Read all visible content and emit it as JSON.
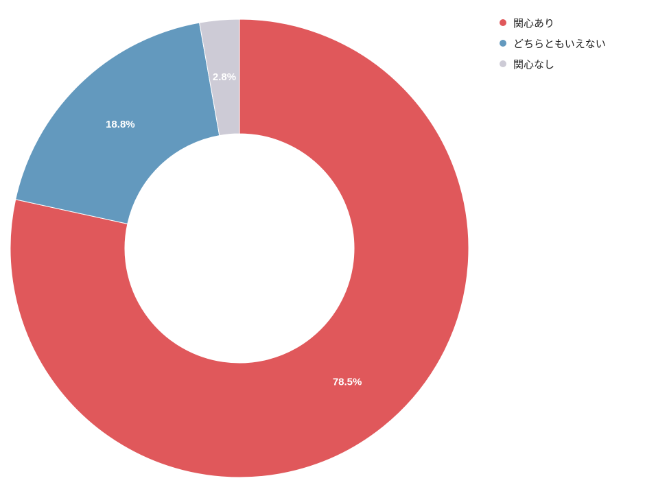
{
  "chart_data": {
    "type": "pie",
    "style": "donut",
    "categories": [
      "関心あり",
      "どちらともいえない",
      "関心なし"
    ],
    "values": [
      78.5,
      18.8,
      2.8
    ],
    "value_labels": [
      "78.5%",
      "18.8%",
      "2.8%"
    ],
    "colors": [
      "#E0585B",
      "#6399BE",
      "#CDCBD6"
    ],
    "legend_position": "top-right",
    "start": "top",
    "direction": "clockwise"
  },
  "legend": {
    "items": [
      {
        "label": "関心あり",
        "color": "#E0585B"
      },
      {
        "label": "どちらともいえない",
        "color": "#6399BE"
      },
      {
        "label": "関心なし",
        "color": "#CDCBD6"
      }
    ]
  }
}
